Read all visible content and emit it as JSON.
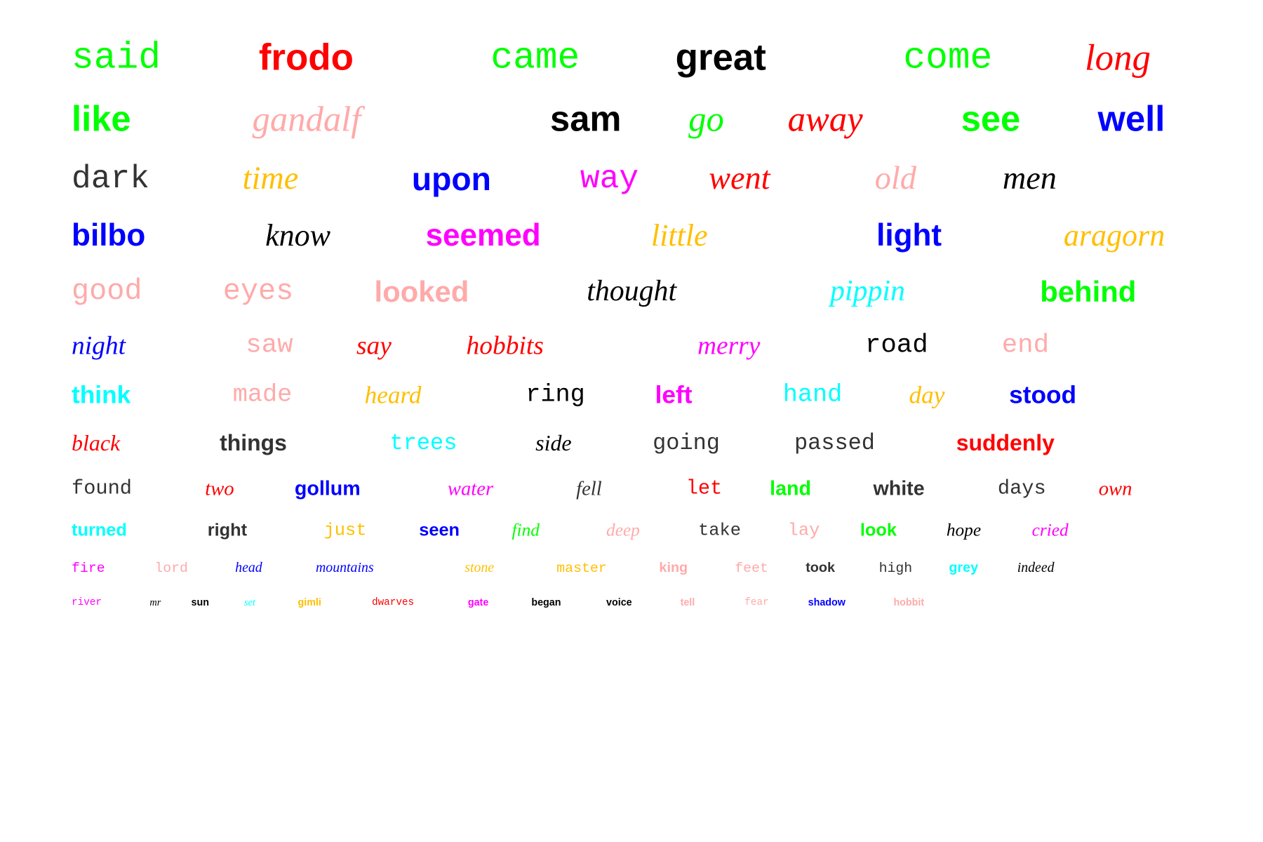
{
  "colors": {
    "green": "#00ff00",
    "red": "#ff0000",
    "black": "#000000",
    "pink": "#ffaaaa",
    "blue": "#0000ff",
    "gray": "#333333",
    "orange": "#ffbf00",
    "magenta": "#ff00ff",
    "cyan": "#00ffff"
  },
  "words": [
    {
      "text": "said",
      "font": "mono",
      "color": "green"
    },
    {
      "text": "frodo",
      "font": "sans",
      "color": "red"
    },
    {
      "text": "came",
      "font": "mono",
      "color": "green"
    },
    {
      "text": "great",
      "font": "sans",
      "color": "black"
    },
    {
      "text": "come",
      "font": "mono",
      "color": "green"
    },
    {
      "text": "long",
      "font": "serif",
      "color": "red"
    },
    {
      "text": "like",
      "font": "sans",
      "color": "green"
    },
    {
      "text": "gandalf",
      "font": "serif",
      "color": "pink"
    },
    {
      "text": "sam",
      "font": "sans",
      "color": "black"
    },
    {
      "text": "go",
      "font": "serif",
      "color": "green"
    },
    {
      "text": "away",
      "font": "serif",
      "color": "red"
    },
    {
      "text": "see",
      "font": "sans",
      "color": "green"
    },
    {
      "text": "well",
      "font": "sans",
      "color": "blue"
    },
    {
      "text": "dark",
      "font": "mono",
      "color": "gray"
    },
    {
      "text": "time",
      "font": "serif",
      "color": "orange"
    },
    {
      "text": "upon",
      "font": "sans",
      "color": "blue"
    },
    {
      "text": "way",
      "font": "mono",
      "color": "magenta"
    },
    {
      "text": "went",
      "font": "serif",
      "color": "red"
    },
    {
      "text": "old",
      "font": "serif",
      "color": "pink"
    },
    {
      "text": "men",
      "font": "serif",
      "color": "black"
    },
    {
      "text": "bilbo",
      "font": "sans",
      "color": "blue"
    },
    {
      "text": "know",
      "font": "serif",
      "color": "black"
    },
    {
      "text": "seemed",
      "font": "sans",
      "color": "magenta"
    },
    {
      "text": "little",
      "font": "serif",
      "color": "orange"
    },
    {
      "text": "light",
      "font": "sans",
      "color": "blue"
    },
    {
      "text": "aragorn",
      "font": "serif",
      "color": "orange"
    },
    {
      "text": "good",
      "font": "mono",
      "color": "pink"
    },
    {
      "text": "eyes",
      "font": "mono",
      "color": "pink"
    },
    {
      "text": "looked",
      "font": "sans",
      "color": "pink"
    },
    {
      "text": "thought",
      "font": "serif",
      "color": "black"
    },
    {
      "text": "pippin",
      "font": "serif",
      "color": "cyan"
    },
    {
      "text": "behind",
      "font": "sans",
      "color": "green"
    },
    {
      "text": "night",
      "font": "serif",
      "color": "blue"
    },
    {
      "text": "saw",
      "font": "mono",
      "color": "pink"
    },
    {
      "text": "say",
      "font": "serif",
      "color": "red"
    },
    {
      "text": "hobbits",
      "font": "serif",
      "color": "red"
    },
    {
      "text": "merry",
      "font": "serif",
      "color": "magenta"
    },
    {
      "text": "road",
      "font": "mono",
      "color": "black"
    },
    {
      "text": "end",
      "font": "mono",
      "color": "pink"
    },
    {
      "text": "think",
      "font": "sans",
      "color": "cyan"
    },
    {
      "text": "made",
      "font": "mono",
      "color": "pink"
    },
    {
      "text": "heard",
      "font": "serif",
      "color": "orange"
    },
    {
      "text": "ring",
      "font": "mono",
      "color": "black"
    },
    {
      "text": "left",
      "font": "sans",
      "color": "magenta"
    },
    {
      "text": "hand",
      "font": "mono",
      "color": "cyan"
    },
    {
      "text": "day",
      "font": "serif",
      "color": "orange"
    },
    {
      "text": "stood",
      "font": "sans",
      "color": "blue"
    },
    {
      "text": "black",
      "font": "serif",
      "color": "red"
    },
    {
      "text": "things",
      "font": "sans",
      "color": "gray"
    },
    {
      "text": "trees",
      "font": "mono",
      "color": "cyan"
    },
    {
      "text": "side",
      "font": "serif",
      "color": "black"
    },
    {
      "text": "going",
      "font": "mono",
      "color": "gray"
    },
    {
      "text": "passed",
      "font": "mono",
      "color": "gray"
    },
    {
      "text": "suddenly",
      "font": "sans",
      "color": "red"
    },
    {
      "text": "found",
      "font": "mono",
      "color": "gray"
    },
    {
      "text": "two",
      "font": "serif",
      "color": "red"
    },
    {
      "text": "gollum",
      "font": "sans",
      "color": "blue"
    },
    {
      "text": "water",
      "font": "serif",
      "color": "magenta"
    },
    {
      "text": "fell",
      "font": "serif",
      "color": "gray"
    },
    {
      "text": "let",
      "font": "mono",
      "color": "red"
    },
    {
      "text": "land",
      "font": "sans",
      "color": "green"
    },
    {
      "text": "white",
      "font": "sans",
      "color": "gray"
    },
    {
      "text": "days",
      "font": "mono",
      "color": "gray"
    },
    {
      "text": "own",
      "font": "serif",
      "color": "red"
    },
    {
      "text": "turned",
      "font": "sans",
      "color": "cyan"
    },
    {
      "text": "right",
      "font": "sans",
      "color": "gray"
    },
    {
      "text": "just",
      "font": "mono",
      "color": "orange"
    },
    {
      "text": "seen",
      "font": "sans",
      "color": "blue"
    },
    {
      "text": "find",
      "font": "serif",
      "color": "green"
    },
    {
      "text": "deep",
      "font": "serif",
      "color": "pink"
    },
    {
      "text": "take",
      "font": "mono",
      "color": "gray"
    },
    {
      "text": "lay",
      "font": "mono",
      "color": "pink"
    },
    {
      "text": "look",
      "font": "sans",
      "color": "green"
    },
    {
      "text": "hope",
      "font": "serif",
      "color": "black"
    },
    {
      "text": "cried",
      "font": "serif",
      "color": "magenta"
    },
    {
      "text": "fire",
      "font": "mono",
      "color": "magenta"
    },
    {
      "text": "lord",
      "font": "mono",
      "color": "pink"
    },
    {
      "text": "head",
      "font": "serif",
      "color": "blue"
    },
    {
      "text": "mountains",
      "font": "serif",
      "color": "blue"
    },
    {
      "text": "stone",
      "font": "serif",
      "color": "orange"
    },
    {
      "text": "master",
      "font": "mono",
      "color": "orange"
    },
    {
      "text": "king",
      "font": "sans",
      "color": "pink"
    },
    {
      "text": "feet",
      "font": "mono",
      "color": "pink"
    },
    {
      "text": "took",
      "font": "sans",
      "color": "gray"
    },
    {
      "text": "high",
      "font": "mono",
      "color": "gray"
    },
    {
      "text": "grey",
      "font": "sans",
      "color": "cyan"
    },
    {
      "text": "indeed",
      "font": "serif",
      "color": "black"
    },
    {
      "text": "river",
      "font": "mono",
      "color": "magenta"
    },
    {
      "text": "mr",
      "font": "serif",
      "color": "black"
    },
    {
      "text": "sun",
      "font": "sans",
      "color": "black"
    },
    {
      "text": "set",
      "font": "serif",
      "color": "cyan"
    },
    {
      "text": "gimli",
      "font": "sans",
      "color": "orange"
    },
    {
      "text": "dwarves",
      "font": "mono",
      "color": "red"
    },
    {
      "text": "gate",
      "font": "sans",
      "color": "magenta"
    },
    {
      "text": "began",
      "font": "sans",
      "color": "black"
    },
    {
      "text": "voice",
      "font": "sans",
      "color": "black"
    },
    {
      "text": "tell",
      "font": "sans",
      "color": "pink"
    },
    {
      "text": "fear",
      "font": "mono",
      "color": "pink"
    },
    {
      "text": "shadow",
      "font": "sans",
      "color": "blue"
    },
    {
      "text": "hobbit",
      "font": "sans",
      "color": "pink"
    }
  ]
}
